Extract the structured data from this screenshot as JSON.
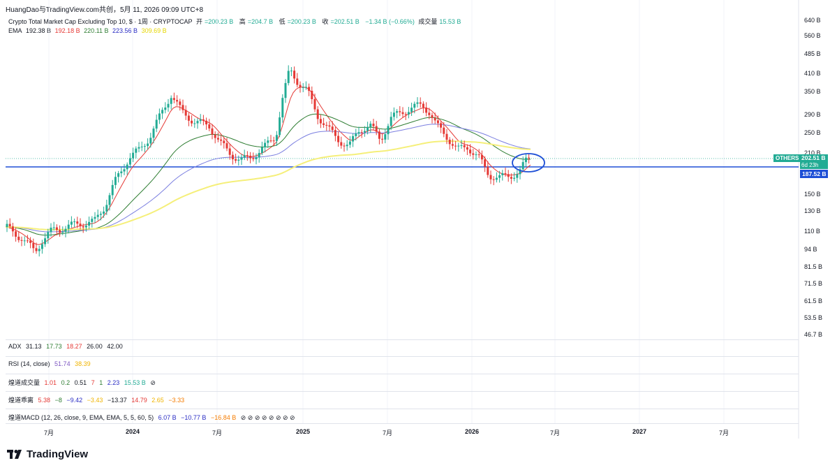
{
  "header": {
    "author_line": "HuangDao与TradingView.com共创，5月 11, 2026 09:09 UTC+8"
  },
  "symbol": {
    "name": "Crypto Total Market Cap Excluding Top 10, $ · 1周 · CRYPTOCAP",
    "open_label": "开",
    "open_value": "=200.23 B",
    "high_label": "高",
    "high_value": "=204.7 B",
    "low_label": "低",
    "low_value": "=200.23 B",
    "close_label": "收",
    "close_value": "=202.51 B",
    "change": "−1.34 B (−0.66%)",
    "volume_label": "成交量",
    "volume_value": "15.53 B"
  },
  "ema": {
    "label": "EMA",
    "values": [
      "192.38 B",
      "192.18 B",
      "220.11 B",
      "223.56 B",
      "309.69 B"
    ],
    "colors": [
      "#131722",
      "#e53935",
      "#2e7d32",
      "#2a2dc4",
      "#e6d700"
    ]
  },
  "price_axis": {
    "labels": [
      "640 B",
      "560 B",
      "485 B",
      "410 B",
      "350 B",
      "290 B",
      "250 B",
      "210 B",
      "150 B",
      "130 B",
      "110 B",
      "94 B",
      "81.5 B",
      "71.5 B",
      "61.5 B",
      "53.5 B",
      "46.7 B"
    ],
    "last_price": "202.51 B",
    "countdown": "6d 23h",
    "symbol_tag": "OTHERS",
    "hline_price": "187.52 B"
  },
  "time_axis": {
    "labels": [
      "7月",
      "2024",
      "7月",
      "2025",
      "7月",
      "2026",
      "7月",
      "2027",
      "7月"
    ]
  },
  "indicators": {
    "adx": {
      "name": "ADX",
      "values": [
        "31.13",
        "17.73",
        "18.27",
        "26.00",
        "42.00"
      ],
      "colors": [
        "#131722",
        "#2e7d32",
        "#e53935",
        "#131722",
        "#131722"
      ]
    },
    "rsi": {
      "name": "RSI (14, close)",
      "values": [
        "51.74",
        "38.39"
      ],
      "colors": [
        "#7e57c2",
        "#f0b400"
      ]
    },
    "vol": {
      "name": "煌道成交量",
      "values": [
        "1.01",
        "0.2",
        "0.51",
        "7",
        "1",
        "2.23",
        "15.53 B",
        "⊘"
      ],
      "colors": [
        "#e53935",
        "#2e7d32",
        "#131722",
        "#e53935",
        "#2e7d32",
        "#2a2dc4",
        "#22ab94",
        "#131722"
      ]
    },
    "dev": {
      "name": "煌道乖离",
      "values": [
        "5.38",
        "−8",
        "−9.42",
        "−3.43",
        "−13.37",
        "14.79",
        "2.65",
        "−3.33"
      ],
      "colors": [
        "#e53935",
        "#2e7d32",
        "#2a2dc4",
        "#f0b400",
        "#131722",
        "#e53935",
        "#f0b400",
        "#f57c00"
      ]
    },
    "macd": {
      "name": "煌道MACD (12, 26, close, 9, EMA, EMA, 5, 5, 60, 5)",
      "values": [
        "6.07 B",
        "−10.77 B",
        "−16.84 B",
        "⊘ ⊘ ⊘ ⊘ ⊘ ⊘ ⊘ ⊘"
      ],
      "colors": [
        "#2a2dc4",
        "#2a2dc4",
        "#f57c00",
        "#131722"
      ]
    }
  },
  "branding": {
    "logo_text": "TradingView"
  },
  "colors": {
    "up": "#22ab94",
    "down": "#e53935",
    "hline": "#1e4fd6",
    "annotation": "#1e4fd6"
  }
}
